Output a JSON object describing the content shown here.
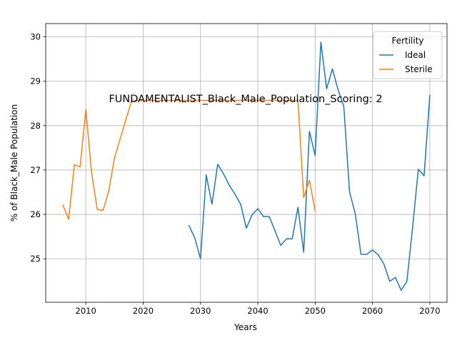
{
  "chart_data": {
    "type": "line",
    "title": "FUNDAMENTALIST_Black_Male_Population_Scoring: 2",
    "xlabel": "Years",
    "ylabel": "% of Black_Male Population",
    "xlim": [
      2003,
      2073
    ],
    "ylim": [
      24.02,
      30.3
    ],
    "xticks": [
      2010,
      2020,
      2030,
      2040,
      2050,
      2060,
      2070
    ],
    "yticks": [
      25,
      26,
      27,
      28,
      29,
      30
    ],
    "grid": true,
    "legend": {
      "title": "Fertility",
      "placement": "top-right"
    },
    "series": [
      {
        "name": "Ideal",
        "color": "#1f77b4",
        "x": [
          2028,
          2029,
          2030,
          2031,
          2032,
          2033,
          2034,
          2035,
          2036,
          2037,
          2038,
          2039,
          2040,
          2041,
          2042,
          2043,
          2044,
          2045,
          2046,
          2047,
          2048,
          2049,
          2050,
          2051,
          2052,
          2053,
          2054,
          2055,
          2056,
          2057,
          2058,
          2059,
          2060,
          2061,
          2062,
          2063,
          2064,
          2065,
          2066,
          2067,
          2068,
          2069,
          2070
        ],
        "y": [
          25.75,
          25.47,
          25.0,
          26.89,
          26.23,
          27.13,
          26.92,
          26.66,
          26.46,
          26.23,
          25.69,
          25.99,
          26.13,
          25.95,
          25.95,
          25.63,
          25.3,
          25.45,
          25.45,
          26.16,
          25.15,
          27.87,
          27.33,
          29.88,
          28.83,
          29.28,
          28.81,
          28.43,
          26.51,
          26.01,
          25.1,
          25.1,
          25.2,
          25.09,
          24.88,
          24.49,
          24.58,
          24.29,
          24.49,
          25.71,
          27.02,
          26.87,
          28.68
        ]
      },
      {
        "name": "Sterile",
        "color": "#ff7f0e",
        "x": [
          2006,
          2007,
          2008,
          2009,
          2010,
          2011,
          2012,
          2013,
          2014,
          2015,
          2016,
          2017,
          2018,
          2019,
          2020,
          2021,
          2022,
          2023,
          2024,
          2025,
          2026,
          2027,
          2028,
          2029,
          2030,
          2031,
          2032,
          2033,
          2034,
          2035,
          2036,
          2037,
          2038,
          2039,
          2040,
          2041,
          2042,
          2043,
          2044,
          2045,
          2046,
          2047,
          2048,
          2049,
          2050
        ],
        "y": [
          26.21,
          25.89,
          27.12,
          27.07,
          28.36,
          26.94,
          26.11,
          26.09,
          26.53,
          27.27,
          27.71,
          28.14,
          28.57,
          28.57,
          28.57,
          28.57,
          28.57,
          28.57,
          28.57,
          28.57,
          28.57,
          28.57,
          28.57,
          28.57,
          28.57,
          28.57,
          28.57,
          28.57,
          28.57,
          28.57,
          28.57,
          28.57,
          28.57,
          28.57,
          28.57,
          28.57,
          28.57,
          28.57,
          28.57,
          28.57,
          28.57,
          28.57,
          26.38,
          26.77,
          26.08
        ]
      }
    ]
  }
}
